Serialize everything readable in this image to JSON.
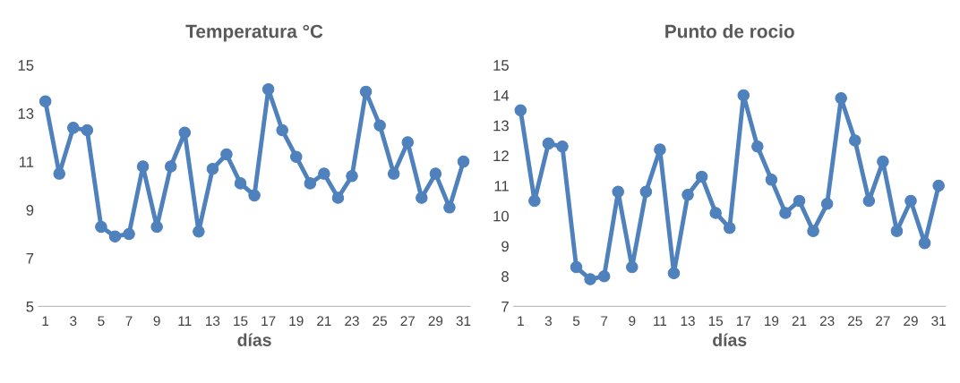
{
  "chart_data": [
    {
      "type": "line",
      "title": "Temperatura °C",
      "xlabel": "días",
      "marker": "circle",
      "grid": false,
      "categories": [
        "1",
        null,
        "3",
        null,
        "5",
        null,
        "7",
        null,
        "9",
        null,
        "11",
        null,
        "13",
        null,
        "15",
        null,
        "17",
        null,
        "19",
        null,
        "21",
        null,
        "23",
        null,
        "25",
        null,
        "27",
        null,
        "29",
        null,
        "31"
      ],
      "series": [
        {
          "color": "#4f81bd",
          "values": [
            13.5,
            10.5,
            12.4,
            12.3,
            8.3,
            7.9,
            8.0,
            10.8,
            8.3,
            10.8,
            12.2,
            8.1,
            10.7,
            11.3,
            10.1,
            9.6,
            14.0,
            12.3,
            11.2,
            10.1,
            10.5,
            9.5,
            10.4,
            13.9,
            12.5,
            10.5,
            11.8,
            9.5,
            10.5,
            9.1,
            11.0
          ]
        }
      ],
      "ylim": [
        5,
        15
      ],
      "yticks": [
        5,
        7,
        9,
        11,
        13,
        15
      ]
    },
    {
      "type": "line",
      "title": "Punto de rocio",
      "xlabel": "días",
      "marker": "circle",
      "grid": false,
      "categories": [
        "1",
        null,
        "3",
        null,
        "5",
        null,
        "7",
        null,
        "9",
        null,
        "11",
        null,
        "13",
        null,
        "15",
        null,
        "17",
        null,
        "19",
        null,
        "21",
        null,
        "23",
        null,
        "25",
        null,
        "27",
        null,
        "29",
        null,
        "31"
      ],
      "series": [
        {
          "color": "#4f81bd",
          "values": [
            13.5,
            10.5,
            12.4,
            12.3,
            8.3,
            7.9,
            8.0,
            10.8,
            8.3,
            10.8,
            12.2,
            8.1,
            10.7,
            11.3,
            10.1,
            9.6,
            14.0,
            12.3,
            11.2,
            10.1,
            10.5,
            9.5,
            10.4,
            13.9,
            12.5,
            10.5,
            11.8,
            9.5,
            10.5,
            9.1,
            11.0
          ]
        }
      ],
      "ylim": [
        7,
        15
      ],
      "yticks": [
        7,
        8,
        9,
        10,
        11,
        12,
        13,
        14,
        15
      ]
    }
  ]
}
